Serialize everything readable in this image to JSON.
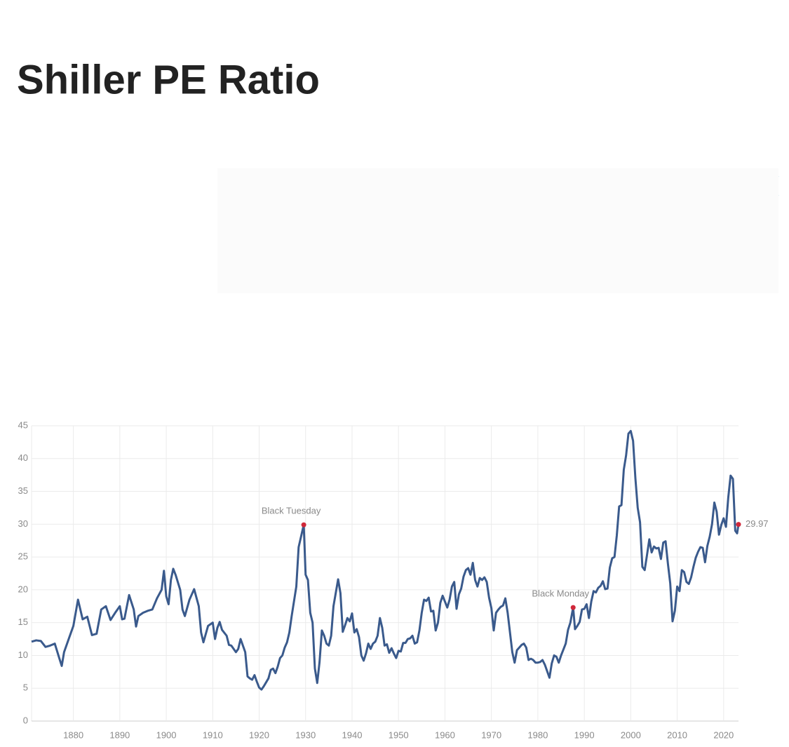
{
  "chart_data": {
    "type": "line",
    "title": "Shiller PE Ratio",
    "x": [
      1871,
      1872,
      1873,
      1874,
      1875,
      1876,
      1877,
      1877.5,
      1878,
      1879,
      1880,
      1881,
      1882,
      1883,
      1884,
      1885,
      1886,
      1887,
      1888,
      1889,
      1890,
      1890.5,
      1891,
      1892,
      1893,
      1893.5,
      1894,
      1895,
      1896,
      1897,
      1898,
      1899,
      1899.5,
      1900,
      1900.5,
      1901,
      1901.5,
      1902,
      1903,
      1903.5,
      1904,
      1905,
      1906,
      1907,
      1907.5,
      1908,
      1909,
      1910,
      1910.5,
      1911,
      1911.5,
      1912,
      1913,
      1913.5,
      1914,
      1915,
      1915.5,
      1916,
      1917,
      1917.5,
      1918,
      1918.5,
      1919,
      1919.5,
      1920,
      1920.5,
      1921,
      1922,
      1922.5,
      1923,
      1923.5,
      1924,
      1924.5,
      1925,
      1925.5,
      1926,
      1926.5,
      1927,
      1928,
      1928.5,
      1929.6,
      1930,
      1930.5,
      1931,
      1931.5,
      1932,
      1932.5,
      1933,
      1933.5,
      1934,
      1934.5,
      1935,
      1935.5,
      1936,
      1937,
      1937.5,
      1938,
      1938.5,
      1939,
      1939.5,
      1940,
      1940.5,
      1941,
      1941.5,
      1942,
      1942.5,
      1943,
      1943.5,
      1944,
      1944.5,
      1945,
      1945.5,
      1946,
      1946.5,
      1947,
      1947.5,
      1948,
      1948.5,
      1949,
      1949.5,
      1950,
      1950.5,
      1951,
      1951.5,
      1952,
      1952.5,
      1953,
      1953.5,
      1954,
      1954.5,
      1955,
      1955.5,
      1956,
      1956.5,
      1957,
      1957.5,
      1958,
      1958.5,
      1959,
      1959.5,
      1960,
      1960.5,
      1961,
      1961.5,
      1962,
      1962.5,
      1963,
      1963.5,
      1964,
      1964.5,
      1965,
      1965.5,
      1966,
      1966.5,
      1967,
      1967.5,
      1968,
      1968.5,
      1969,
      1969.5,
      1970,
      1970.5,
      1971,
      1971.5,
      1972,
      1972.5,
      1973,
      1973.5,
      1974,
      1974.5,
      1975,
      1975.5,
      1976,
      1976.5,
      1977,
      1977.5,
      1978,
      1978.5,
      1979,
      1979.5,
      1980,
      1980.5,
      1981,
      1981.5,
      1982,
      1982.5,
      1983,
      1983.5,
      1984,
      1984.5,
      1985,
      1985.5,
      1986,
      1986.5,
      1987,
      1987.6,
      1988,
      1988.5,
      1989,
      1989.5,
      1990,
      1990.5,
      1991,
      1991.5,
      1992,
      1992.5,
      1993,
      1993.5,
      1994,
      1994.5,
      1995,
      1995.5,
      1996,
      1996.5,
      1997,
      1997.5,
      1998,
      1998.5,
      1999,
      1999.5,
      2000,
      2000.5,
      2001,
      2001.5,
      2002,
      2002.5,
      2003,
      2003.5,
      2004,
      2004.5,
      2005,
      2005.5,
      2006,
      2006.5,
      2007,
      2007.5,
      2008,
      2008.5,
      2009,
      2009.5,
      2010,
      2010.5,
      2011,
      2011.5,
      2012,
      2012.5,
      2013,
      2013.5,
      2014,
      2014.5,
      2015,
      2015.5,
      2016,
      2016.5,
      2017,
      2017.5,
      2018,
      2018.5,
      2019,
      2019.5,
      2020,
      2020.5,
      2021,
      2021.5,
      2022,
      2022.5,
      2022.9,
      2023.2
    ],
    "y": [
      12.1,
      12.3,
      12.2,
      11.3,
      11.5,
      11.8,
      9.5,
      8.4,
      10.5,
      12.5,
      14.5,
      18.5,
      15.5,
      15.9,
      13.1,
      13.3,
      17.0,
      17.5,
      15.4,
      16.5,
      17.5,
      15.5,
      15.6,
      19.2,
      17.0,
      14.4,
      16.0,
      16.5,
      16.8,
      17.0,
      18.7,
      20.0,
      22.9,
      19.0,
      17.8,
      21.5,
      23.2,
      22.3,
      20.0,
      17.0,
      16.0,
      18.5,
      20.1,
      17.5,
      13.5,
      12.0,
      14.5,
      15.0,
      12.5,
      14.2,
      15.1,
      13.9,
      13.0,
      11.6,
      11.5,
      10.5,
      11.0,
      12.5,
      10.5,
      6.8,
      6.5,
      6.3,
      7.0,
      6.0,
      5.1,
      4.8,
      5.3,
      6.5,
      7.8,
      8.0,
      7.3,
      8.3,
      9.6,
      10.0,
      11.2,
      12.0,
      13.5,
      16.0,
      20.5,
      26.5,
      29.9,
      22.3,
      21.5,
      16.5,
      15.0,
      8.0,
      5.8,
      9.0,
      13.8,
      13.0,
      11.8,
      11.5,
      13.0,
      17.5,
      21.6,
      19.5,
      13.6,
      14.6,
      15.7,
      15.2,
      16.4,
      13.5,
      14.0,
      12.8,
      10.0,
      9.2,
      10.3,
      11.8,
      11.0,
      11.8,
      12.1,
      13.0,
      15.7,
      14.2,
      11.5,
      11.7,
      10.4,
      11.1,
      10.3,
      9.6,
      10.7,
      10.6,
      11.9,
      11.9,
      12.5,
      12.6,
      13.0,
      11.8,
      12.0,
      13.8,
      16.5,
      18.5,
      18.3,
      18.8,
      16.7,
      16.8,
      13.8,
      15.0,
      18.0,
      19.1,
      18.2,
      17.3,
      18.5,
      20.5,
      21.2,
      17.1,
      19.3,
      20.2,
      22.0,
      23.0,
      23.3,
      22.3,
      24.1,
      21.5,
      20.5,
      21.8,
      21.5,
      21.9,
      21.2,
      18.8,
      17.2,
      13.8,
      16.5,
      17.0,
      17.4,
      17.6,
      18.7,
      16.5,
      13.5,
      10.5,
      8.9,
      10.8,
      11.2,
      11.6,
      11.8,
      11.2,
      9.3,
      9.5,
      9.3,
      8.9,
      8.9,
      9.0,
      9.3,
      8.6,
      7.6,
      6.6,
      8.8,
      10.0,
      9.8,
      8.9,
      10.0,
      10.9,
      11.8,
      13.9,
      15.0,
      17.3,
      14.0,
      14.5,
      15.1,
      17.0,
      17.1,
      17.8,
      15.7,
      18.2,
      19.8,
      19.6,
      20.3,
      20.6,
      21.3,
      20.1,
      20.2,
      23.4,
      24.8,
      25.0,
      28.3,
      32.7,
      32.9,
      38.3,
      40.5,
      43.8,
      44.2,
      42.7,
      37.0,
      32.5,
      30.3,
      23.5,
      23.0,
      25.3,
      27.7,
      25.7,
      26.6,
      26.3,
      26.4,
      24.7,
      27.2,
      27.4,
      24.0,
      21.0,
      15.2,
      16.8,
      20.5,
      19.8,
      23.0,
      22.7,
      21.2,
      20.9,
      21.9,
      23.5,
      24.9,
      25.8,
      26.5,
      26.4,
      24.2,
      26.7,
      28.1,
      30.0,
      33.3,
      31.9,
      28.4,
      29.9,
      30.9,
      29.6,
      34.1,
      37.4,
      36.9,
      29.0,
      28.6,
      29.97
    ],
    "color": "#3a5a8c",
    "marker_color": "#d0283a",
    "annotations": [
      {
        "text": "Black Tuesday",
        "x": 1929.6,
        "y": 29.9
      },
      {
        "text": "Black Monday",
        "x": 1987.6,
        "y": 17.3
      }
    ],
    "xlim": [
      1871,
      2023.2
    ],
    "ylim": [
      0,
      45
    ],
    "xticks": [
      1880,
      1890,
      1900,
      1910,
      1920,
      1930,
      1940,
      1950,
      1960,
      1970,
      1980,
      1990,
      2000,
      2010,
      2020
    ],
    "yticks": [
      0,
      5,
      10,
      15,
      20,
      25,
      30,
      35,
      40,
      45
    ],
    "grid": true
  }
}
